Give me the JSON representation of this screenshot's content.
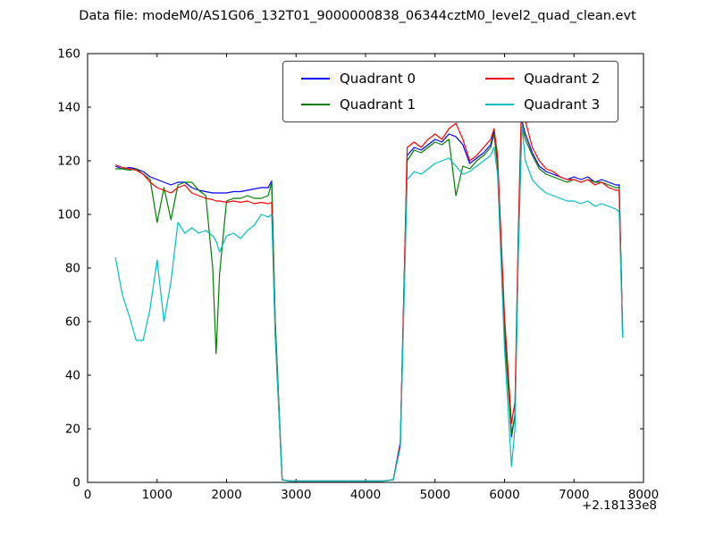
{
  "chart_data": {
    "type": "line",
    "title": "Data file: modeM0/AS1G06_132T01_9000000838_06344cztM0_level2_quad_clean.evt",
    "xlabel": "",
    "ylabel": "",
    "xlim": [
      0,
      8000
    ],
    "ylim": [
      0,
      160
    ],
    "xticks": [
      0,
      1000,
      2000,
      3000,
      4000,
      5000,
      6000,
      7000,
      8000
    ],
    "yticks": [
      0,
      20,
      40,
      60,
      80,
      100,
      120,
      140,
      160
    ],
    "x_offset_label": "+2.18133e8",
    "grid": false,
    "legend": {
      "position": "upper center",
      "columns": 2
    },
    "x": [
      400,
      500,
      600,
      700,
      800,
      900,
      1000,
      1100,
      1200,
      1300,
      1400,
      1500,
      1600,
      1700,
      1800,
      1850,
      1900,
      2000,
      2100,
      2200,
      2300,
      2400,
      2500,
      2600,
      2650,
      2700,
      2800,
      2900,
      3000,
      3250,
      3500,
      3750,
      4000,
      4250,
      4400,
      4500,
      4600,
      4700,
      4800,
      4900,
      5000,
      5100,
      5200,
      5300,
      5400,
      5500,
      5600,
      5700,
      5800,
      5850,
      5900,
      6000,
      6100,
      6150,
      6200,
      6250,
      6300,
      6400,
      6500,
      6600,
      6700,
      6800,
      6900,
      7000,
      7100,
      7200,
      7300,
      7400,
      7500,
      7600,
      7650,
      7700
    ],
    "series": [
      {
        "name": "Quadrant 0",
        "color": "#0000ff",
        "values": [
          118,
          117,
          117.5,
          117,
          116,
          114,
          113,
          112,
          111,
          112,
          112,
          110,
          109,
          108.5,
          108,
          108,
          108,
          108,
          108.5,
          108.5,
          109,
          109.5,
          110,
          110,
          112.5,
          60,
          1,
          0.5,
          0.5,
          0.5,
          0.5,
          0.5,
          0.5,
          0.5,
          1,
          15,
          122,
          125,
          124,
          126,
          128,
          127,
          130,
          129,
          126,
          119,
          121,
          123,
          126,
          131,
          120,
          60,
          17,
          25,
          90,
          135,
          130,
          123,
          118,
          116,
          115,
          114,
          113,
          114,
          113,
          114,
          112,
          113,
          112,
          111,
          111,
          55
        ]
      },
      {
        "name": "Quadrant 1",
        "color": "#007f00",
        "values": [
          117,
          117,
          116.5,
          117,
          115,
          113,
          97,
          110,
          98,
          111,
          112,
          112,
          109,
          107,
          80,
          48,
          78,
          105,
          106,
          106,
          107,
          106,
          106,
          107,
          112,
          60,
          1,
          0.5,
          0.5,
          0.5,
          0.5,
          0.5,
          0.5,
          0.5,
          1,
          14,
          120,
          124,
          123,
          125,
          127,
          126,
          128,
          107,
          118,
          117,
          120,
          122,
          125,
          130,
          118,
          55,
          18,
          25,
          88,
          133,
          128,
          122,
          117,
          115,
          114,
          113,
          112,
          113,
          112,
          113,
          112,
          112,
          111,
          110,
          110,
          54
        ]
      },
      {
        "name": "Quadrant 2",
        "color": "#ff0000",
        "values": [
          118.5,
          117.5,
          117,
          116.5,
          115,
          112,
          110,
          109,
          108,
          110,
          111,
          108,
          107,
          106,
          105.5,
          105,
          105,
          104.5,
          105,
          104.5,
          105,
          104,
          104.5,
          104,
          104.5,
          55,
          1,
          0.5,
          0.5,
          0.5,
          0.5,
          0.5,
          0.5,
          0.5,
          1,
          14,
          125,
          127,
          125,
          128,
          130,
          128,
          132,
          134,
          128,
          120,
          122,
          125,
          128,
          132,
          122,
          62,
          22,
          30,
          95,
          147,
          135,
          125,
          120,
          117,
          116,
          114,
          113,
          113,
          112,
          113,
          111,
          112,
          110,
          109,
          109,
          56
        ]
      },
      {
        "name": "Quadrant 3",
        "color": "#00bfbf",
        "values": [
          84,
          70,
          62,
          53,
          53,
          65,
          83,
          60,
          75,
          97,
          93,
          95,
          93,
          94,
          92,
          90,
          86,
          92,
          93,
          91,
          94,
          96,
          100,
          99,
          100,
          55,
          1,
          0.5,
          0.5,
          0.5,
          0.5,
          0.5,
          0.5,
          0.5,
          1,
          13,
          113,
          116,
          115,
          117,
          119,
          120,
          121,
          118,
          115,
          116,
          118,
          120,
          122,
          125,
          115,
          50,
          6,
          20,
          85,
          134,
          120,
          113,
          110,
          108,
          107,
          106,
          105,
          105,
          104,
          105,
          103,
          104,
          103,
          102,
          101,
          54
        ]
      }
    ],
    "axis_color": "#000000",
    "background_color": "#ffffff"
  }
}
